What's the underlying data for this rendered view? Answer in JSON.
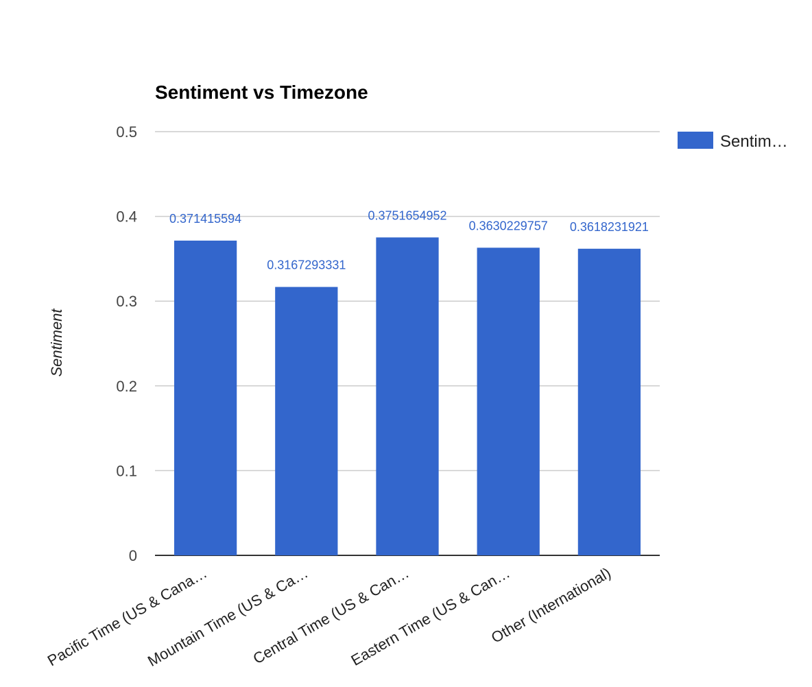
{
  "chart_data": {
    "type": "bar",
    "title": "Sentiment vs Timezone",
    "xlabel": "",
    "ylabel": "Sentiment",
    "ylim": [
      0,
      0.5
    ],
    "yticks": [
      "0",
      "0.1",
      "0.2",
      "0.3",
      "0.4",
      "0.5"
    ],
    "categories": [
      "Pacific Time (US & Cana…",
      "Mountain Time (US & Ca…",
      "Central Time (US & Can…",
      "Eastern Time (US & Can…",
      "Other (International)"
    ],
    "series": [
      {
        "name": "Sentim…",
        "color": "#3366cc",
        "values": [
          0.371415594,
          0.3167293331,
          0.3751654952,
          0.3630229757,
          0.3618231921
        ],
        "value_labels": [
          "0.371415594",
          "0.3167293331",
          "0.3751654952",
          "0.3630229757",
          "0.3618231921"
        ]
      }
    ],
    "grid": true,
    "legend_position": "right"
  }
}
